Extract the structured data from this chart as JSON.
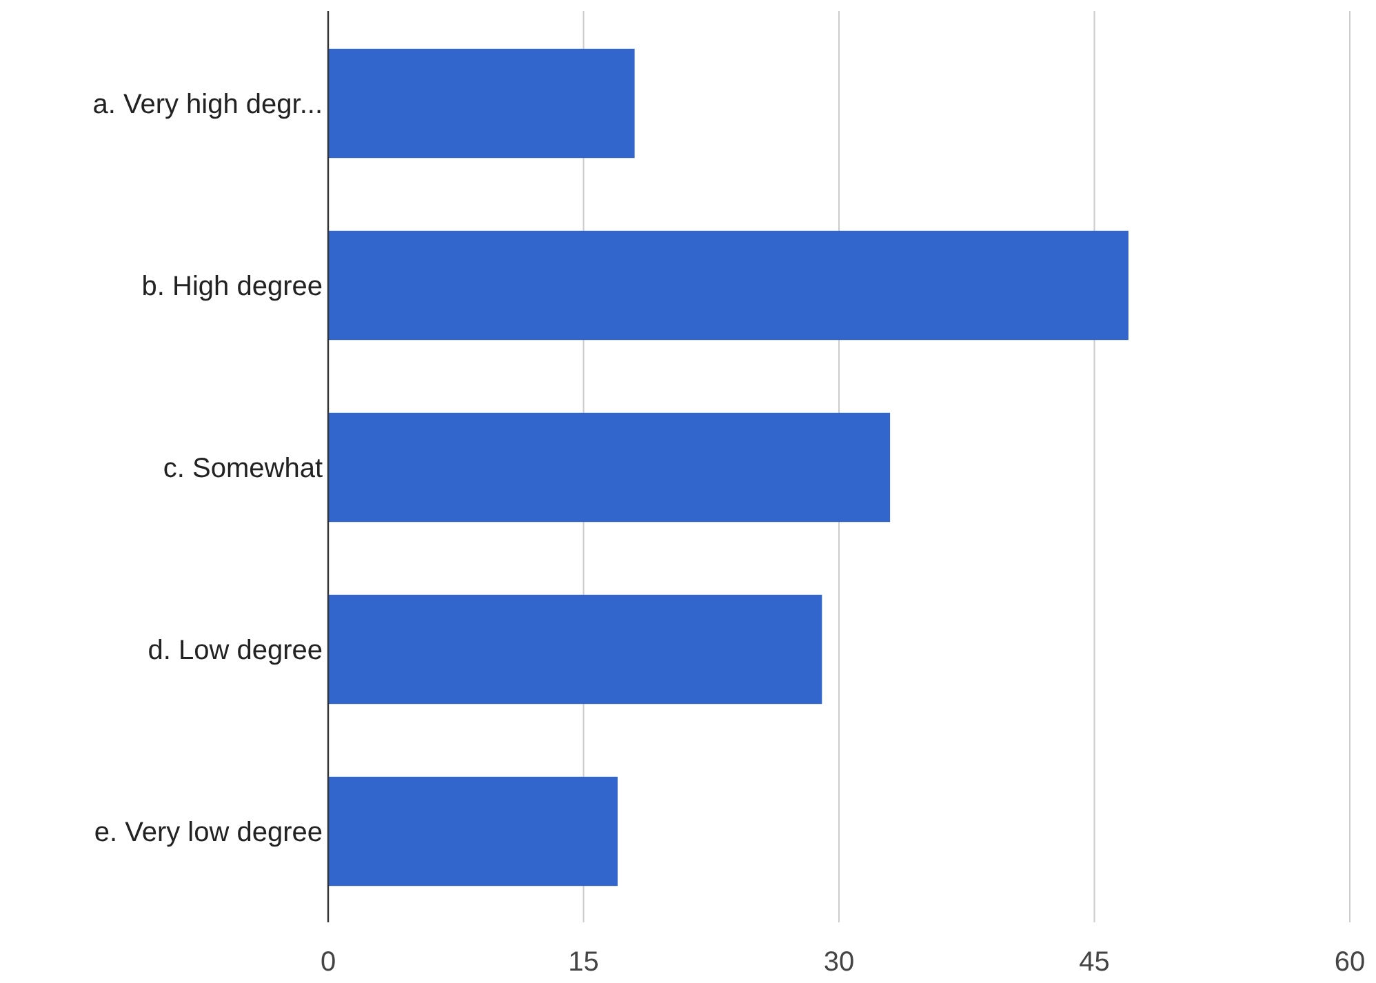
{
  "chart_data": {
    "type": "bar",
    "orientation": "horizontal",
    "categories": [
      "a. Very high degr...",
      "b. High degree",
      "c. Somewhat",
      "d. Low degree",
      "e. Very low degree"
    ],
    "values": [
      18,
      47,
      33,
      29,
      17
    ],
    "color": "#3366cc",
    "xlim": [
      0,
      60
    ],
    "xticks": [
      0,
      15,
      30,
      45,
      60
    ],
    "grid": "x"
  }
}
